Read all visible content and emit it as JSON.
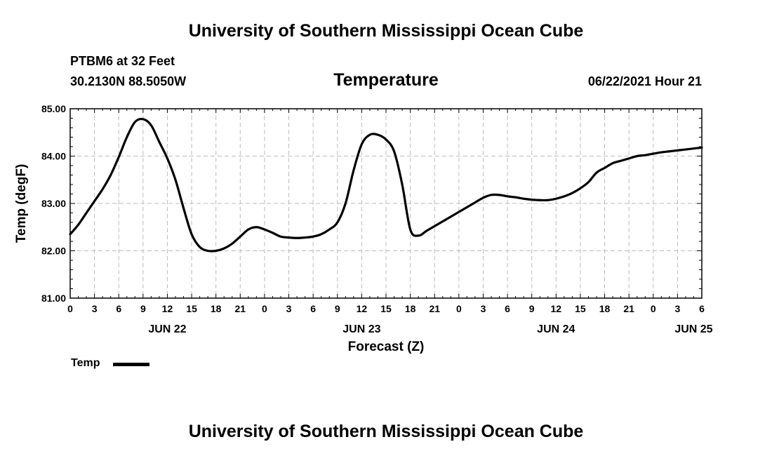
{
  "page": {
    "top_title": "University of Southern Mississippi Ocean Cube",
    "bottom_title": "University of Southern Mississippi Ocean Cube",
    "station": "PTBM6 at 32 Feet",
    "location": "30.2130N  88.5050W",
    "datetime": "06/22/2021 Hour 21",
    "legend_label": "Temp",
    "colors": {
      "line": "#000000",
      "grid": "#bbbbbb",
      "background": "#ffffff"
    }
  },
  "chart_data": {
    "type": "line",
    "title": "Temperature",
    "xlabel": "Forecast (Z)",
    "ylabel": "Temp (degF)",
    "ylim": [
      81.0,
      85.0
    ],
    "xlim": [
      0,
      78
    ],
    "grid": true,
    "y_ticks": [
      "81.00",
      "82.00",
      "83.00",
      "84.00",
      "85.00"
    ],
    "x_tick_labels": [
      "0",
      "3",
      "6",
      "9",
      "12",
      "15",
      "18",
      "21",
      "0",
      "3",
      "6",
      "9",
      "12",
      "15",
      "18",
      "21",
      "0",
      "3",
      "6",
      "9",
      "12",
      "15",
      "18",
      "21",
      "0",
      "3",
      "6"
    ],
    "date_labels": [
      {
        "label": "JUN 22",
        "hour": 12
      },
      {
        "label": "JUN 23",
        "hour": 36
      },
      {
        "label": "JUN 24",
        "hour": 60
      },
      {
        "label": "JUN 25",
        "hour": 77
      }
    ],
    "legend": [
      "Temp"
    ],
    "series": [
      {
        "name": "Temp",
        "x": [
          0,
          1,
          2,
          3,
          4,
          5,
          6,
          7,
          8,
          9,
          10,
          11,
          12,
          13,
          14,
          15,
          16,
          17,
          18,
          19,
          20,
          21,
          22,
          23,
          24,
          25,
          26,
          27,
          28,
          29,
          30,
          31,
          32,
          33,
          34,
          35,
          36,
          37,
          38,
          39,
          40,
          41,
          42,
          43,
          44,
          45,
          46,
          47,
          48,
          49,
          50,
          51,
          52,
          53,
          54,
          55,
          56,
          57,
          58,
          59,
          60,
          61,
          62,
          63,
          64,
          65,
          66,
          67,
          68,
          69,
          70,
          71,
          72,
          73,
          74,
          75,
          76,
          77,
          78
        ],
        "values": [
          82.35,
          82.55,
          82.8,
          83.05,
          83.3,
          83.6,
          83.98,
          84.4,
          84.72,
          84.78,
          84.65,
          84.3,
          83.95,
          83.5,
          82.9,
          82.35,
          82.08,
          82.0,
          82.0,
          82.05,
          82.15,
          82.3,
          82.45,
          82.5,
          82.45,
          82.38,
          82.3,
          82.28,
          82.27,
          82.28,
          82.3,
          82.35,
          82.45,
          82.6,
          83.0,
          83.7,
          84.25,
          84.45,
          84.45,
          84.35,
          84.1,
          83.4,
          82.45,
          82.32,
          82.42,
          82.52,
          82.62,
          82.72,
          82.82,
          82.92,
          83.02,
          83.12,
          83.18,
          83.18,
          83.15,
          83.13,
          83.1,
          83.08,
          83.07,
          83.07,
          83.1,
          83.15,
          83.22,
          83.32,
          83.45,
          83.65,
          83.75,
          83.85,
          83.9,
          83.95,
          84.0,
          84.02,
          84.05,
          84.08,
          84.1,
          84.12,
          84.14,
          84.16,
          84.18
        ]
      }
    ]
  }
}
